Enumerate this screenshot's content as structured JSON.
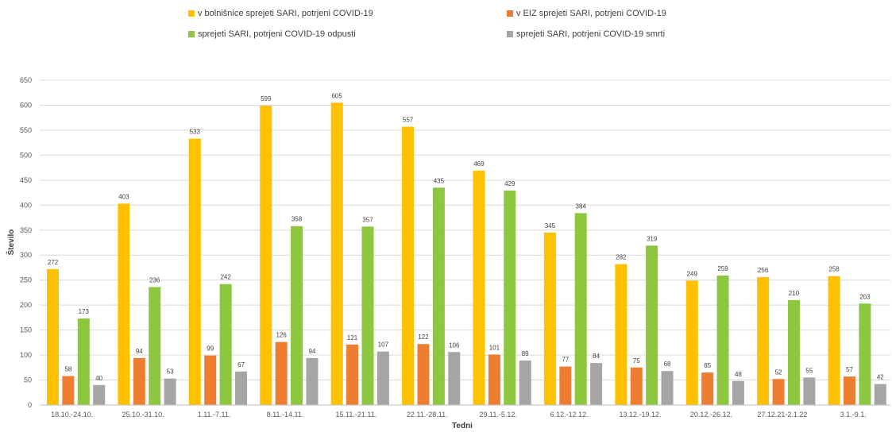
{
  "chart_data": {
    "type": "bar",
    "xlabel": "Tedni",
    "ylabel": "Število",
    "ylim": [
      0,
      650
    ],
    "ytick_step": 50,
    "grid": true,
    "legend_position": "top",
    "categories": [
      "18.10.-24.10.",
      "25.10.-31.10.",
      "1.11.-7.11.",
      "8.11.-14.11.",
      "15.11.-21.11.",
      "22.11.-28.11.",
      "29.11.-5.12.",
      "6.12.-12.12.",
      "13.12.-19.12.",
      "20.12.-26.12.",
      "27.12.21-2.1.22",
      "3.1.-9.1."
    ],
    "series": [
      {
        "name": "v bolnišnice sprejeti SARI, potrjeni COVID-19",
        "color": "#FFC000",
        "values": [
          272,
          403,
          533,
          599,
          605,
          557,
          469,
          345,
          282,
          249,
          256,
          258
        ]
      },
      {
        "name": "v EIZ sprejeti SARI, potrjeni COVID-19",
        "color": "#ED7D31",
        "values": [
          58,
          94,
          99,
          126,
          121,
          122,
          101,
          77,
          75,
          65,
          52,
          57
        ]
      },
      {
        "name": "sprejeti SARI, potrjeni COVID-19 odpusti",
        "color": "#8DC63F",
        "values": [
          173,
          236,
          242,
          358,
          357,
          435,
          429,
          384,
          319,
          259,
          210,
          203
        ]
      },
      {
        "name": "sprejeti SARI, potrjeni COVID-19 smrti",
        "color": "#A5A5A5",
        "values": [
          40,
          53,
          67,
          94,
          107,
          106,
          89,
          84,
          68,
          48,
          55,
          42
        ]
      }
    ]
  }
}
